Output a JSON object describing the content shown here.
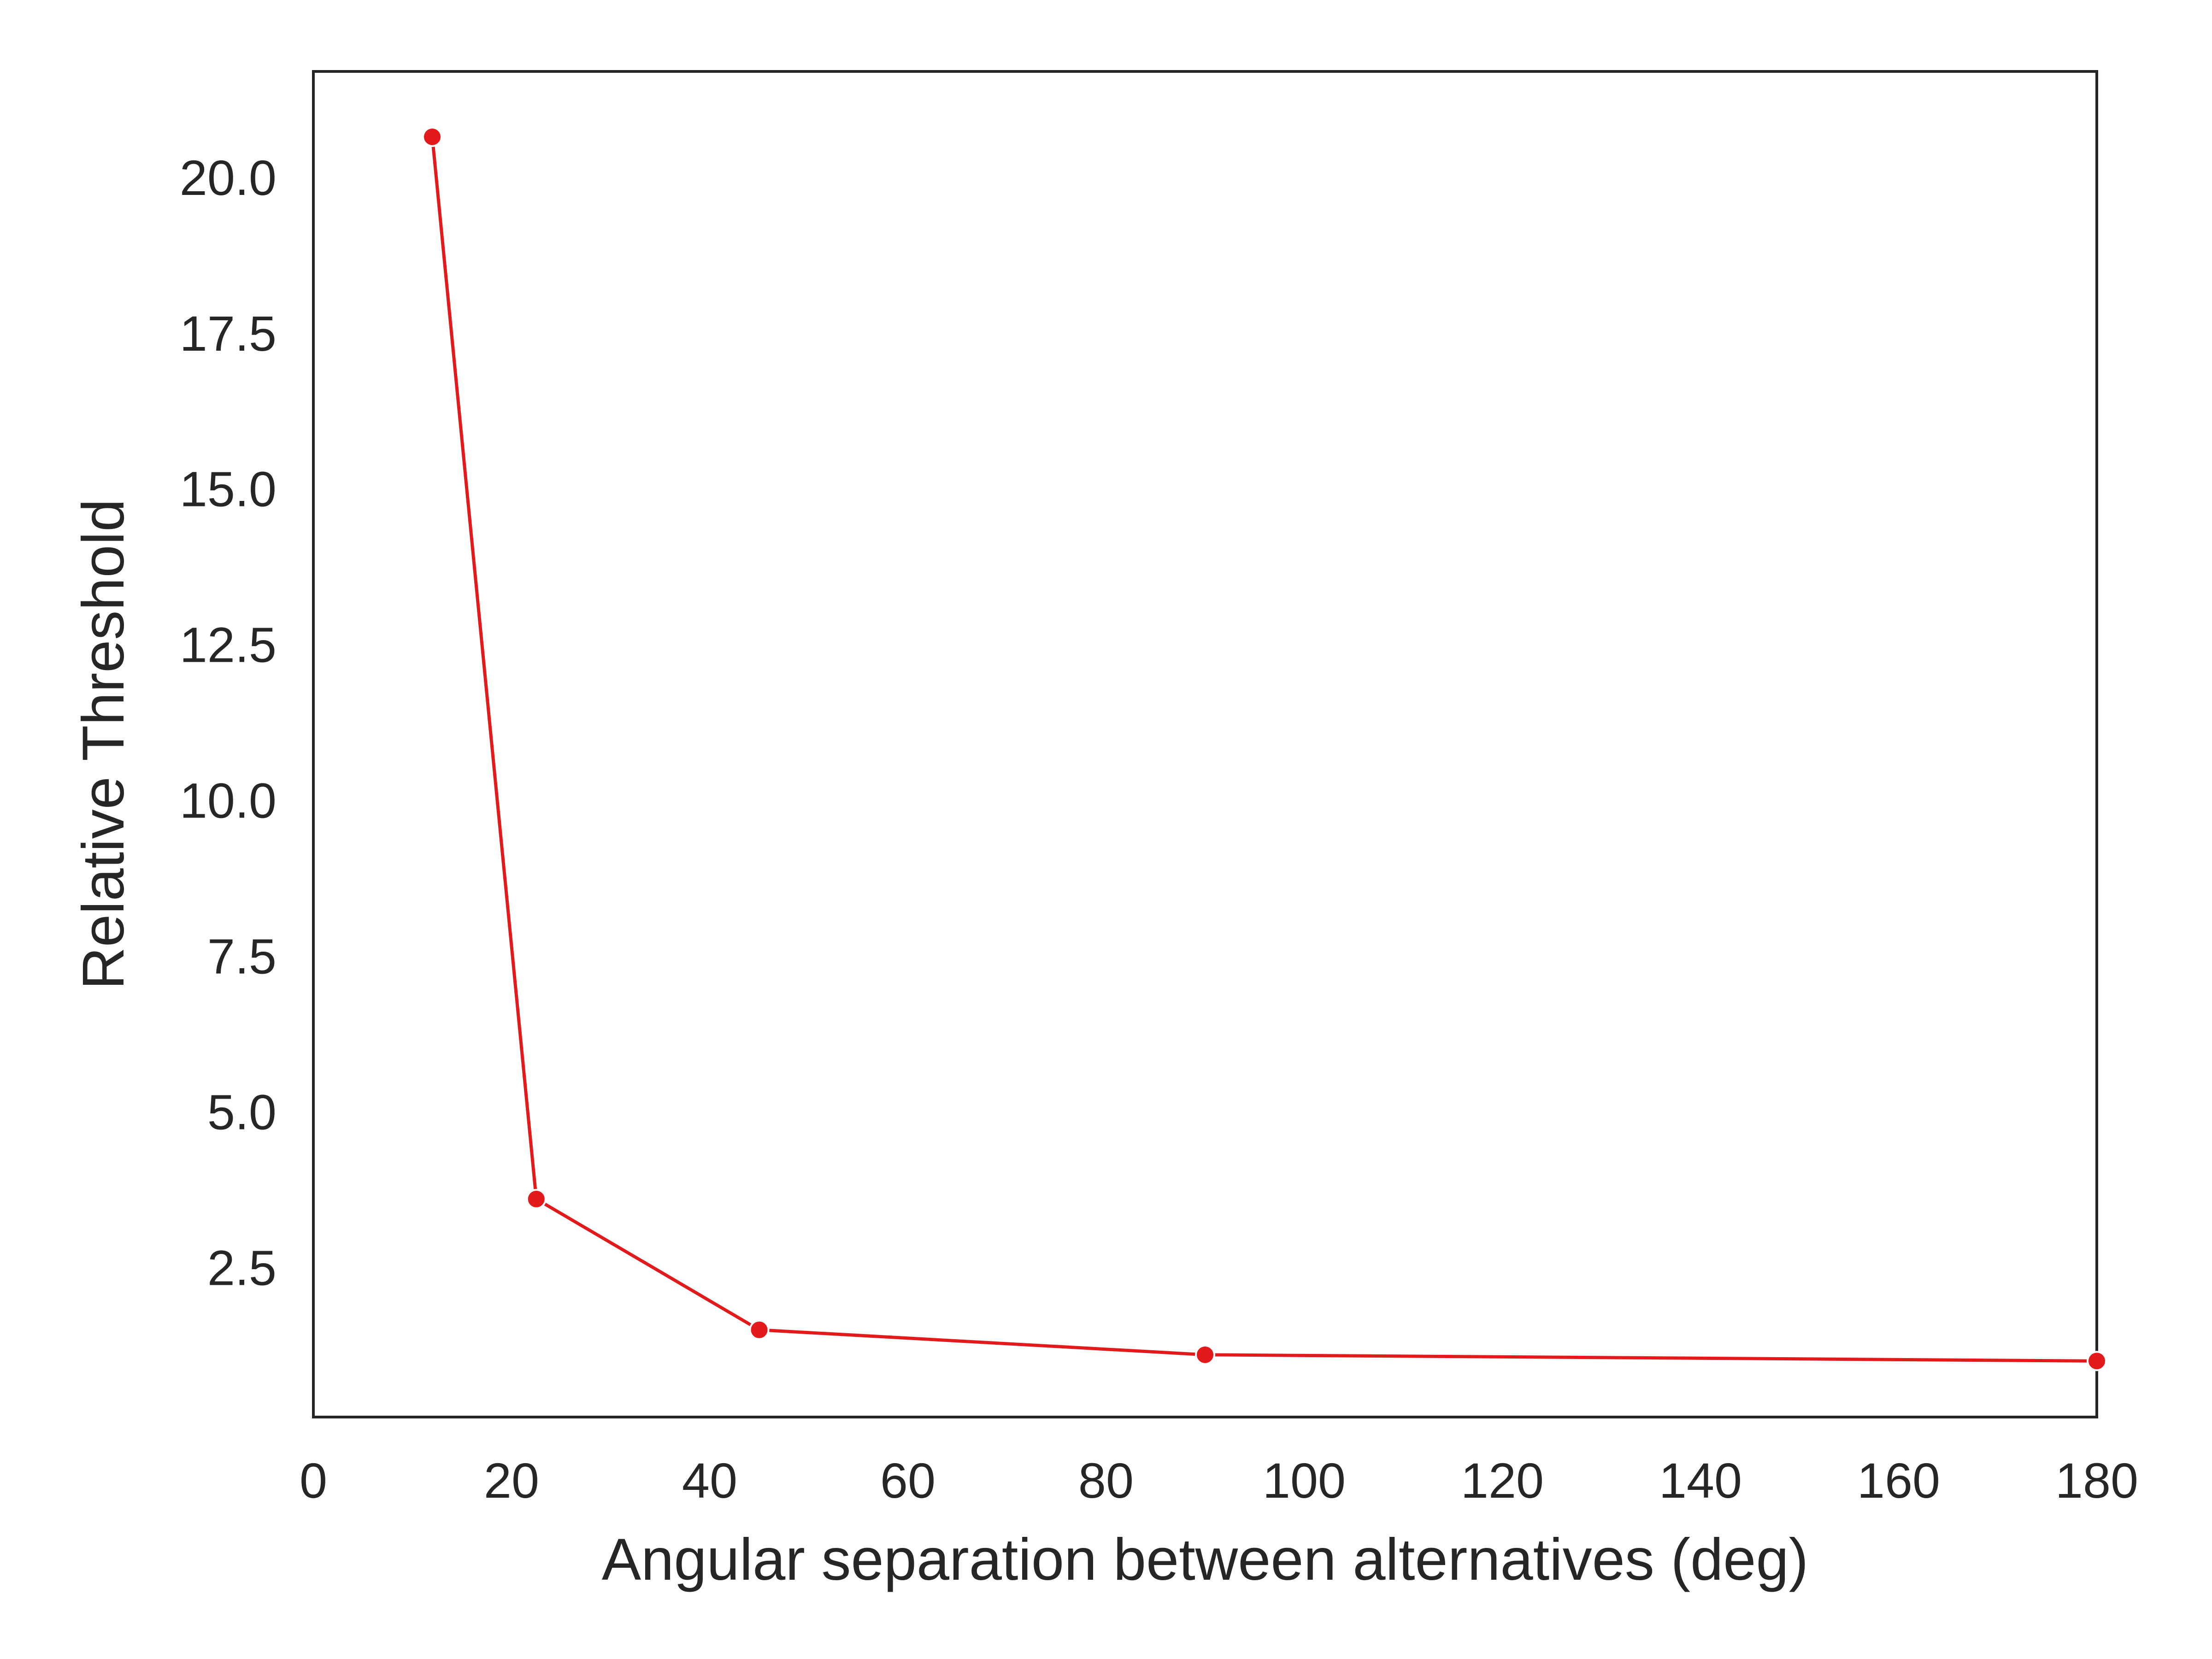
{
  "chart_data": {
    "type": "line",
    "title": "",
    "xlabel": "Angular separation between alternatives (deg)",
    "ylabel": "Relative Threshold",
    "xlim": [
      0,
      180
    ],
    "ylim": [
      0.1,
      21.7
    ],
    "x_ticks": [
      "0",
      "20",
      "40",
      "60",
      "80",
      "100",
      "120",
      "140",
      "160",
      "180"
    ],
    "y_ticks": [
      "2.5",
      "5.0",
      "7.5",
      "10.0",
      "12.5",
      "15.0",
      "17.5",
      "20.0"
    ],
    "grid": false,
    "legend": "none",
    "series": [
      {
        "color": "#e31a1c",
        "x": [
          12,
          22.5,
          45,
          90,
          180
        ],
        "y": [
          20.65,
          3.6,
          1.5,
          1.1,
          1.0
        ]
      }
    ]
  }
}
